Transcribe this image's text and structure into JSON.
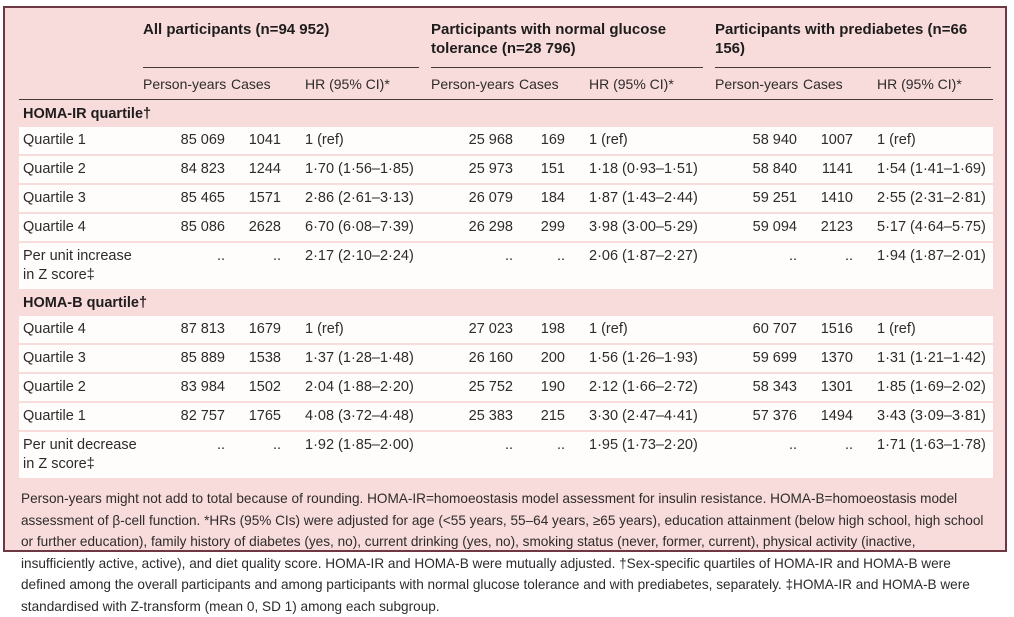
{
  "table": {
    "groups": [
      {
        "title": "All participants (n=94 952)"
      },
      {
        "title": "Participants with normal glucose tolerance (n=28 796)"
      },
      {
        "title": "Participants with prediabetes (n=66 156)"
      }
    ],
    "subheaders": [
      "Person-years",
      "Cases",
      "HR (95% CI)*"
    ],
    "sections": [
      {
        "header": "HOMA-IR quartile†",
        "rows": [
          {
            "label": "Quartile 1",
            "label2": "",
            "cells": [
              "85 069",
              "1041",
              "1 (ref)",
              "25 968",
              "169",
              "1 (ref)",
              "58 940",
              "1007",
              "1 (ref)"
            ]
          },
          {
            "label": "Quartile 2",
            "label2": "",
            "cells": [
              "84 823",
              "1244",
              "1·70 (1·56–1·85)",
              "25 973",
              "151",
              "1·18 (0·93–1·51)",
              "58 840",
              "1141",
              "1·54 (1·41–1·69)"
            ]
          },
          {
            "label": "Quartile 3",
            "label2": "",
            "cells": [
              "85 465",
              "1571",
              "2·86 (2·61–3·13)",
              "26 079",
              "184",
              "1·87 (1·43–2·44)",
              "59 251",
              "1410",
              "2·55 (2·31–2·81)"
            ]
          },
          {
            "label": "Quartile 4",
            "label2": "",
            "cells": [
              "85 086",
              "2628",
              "6·70 (6·08–7·39)",
              "26 298",
              "299",
              "3·98 (3·00–5·29)",
              "59 094",
              "2123",
              "5·17 (4·64–5·75)"
            ]
          },
          {
            "label": "Per unit increase",
            "label2": "in Z score‡",
            "cells": [
              "..",
              "..",
              "2·17 (2·10–2·24)",
              "..",
              "..",
              "2·06 (1·87–2·27)",
              "..",
              "..",
              "1·94 (1·87–2·01)"
            ]
          }
        ]
      },
      {
        "header": "HOMA-B quartile†",
        "rows": [
          {
            "label": "Quartile 4",
            "label2": "",
            "cells": [
              "87 813",
              "1679",
              "1 (ref)",
              "27 023",
              "198",
              "1 (ref)",
              "60 707",
              "1516",
              "1 (ref)"
            ]
          },
          {
            "label": "Quartile 3",
            "label2": "",
            "cells": [
              "85 889",
              "1538",
              "1·37 (1·28–1·48)",
              "26 160",
              "200",
              "1·56 (1·26–1·93)",
              "59 699",
              "1370",
              "1·31 (1·21–1·42)"
            ]
          },
          {
            "label": "Quartile 2",
            "label2": "",
            "cells": [
              "83 984",
              "1502",
              "2·04 (1·88–2·20)",
              "25 752",
              "190",
              "2·12 (1·66–2·72)",
              "58 343",
              "1301",
              "1·85 (1·69–2·02)"
            ]
          },
          {
            "label": "Quartile 1",
            "label2": "",
            "cells": [
              "82 757",
              "1765",
              "4·08 (3·72–4·48)",
              "25 383",
              "215",
              "3·30 (2·47–4·41)",
              "57 376",
              "1494",
              "3·43 (3·09–3·81)"
            ]
          },
          {
            "label": "Per unit decrease",
            "label2": "in Z score‡",
            "cells": [
              "..",
              "..",
              "1·92 (1·85–2·00)",
              "..",
              "..",
              "1·95 (1·73–2·20)",
              "..",
              "..",
              "1·71 (1·63–1·78)"
            ]
          }
        ]
      }
    ],
    "footnote": "Person-years might not add to total because of rounding. HOMA-IR=homoeostasis model assessment for insulin resistance. HOMA-B=homoeostasis model assessment of β-cell function. *HRs (95% CIs) were adjusted for age (<55 years, 55–64 years, ≥65 years), education attainment (below high school, high school or further education), family history of diabetes (yes, no), current drinking (yes, no), smoking status (never, former, current), physical activity (inactive, insufficiently active, active), and diet quality score. HOMA-IR and HOMA-B were mutually adjusted. †Sex-specific quartiles of HOMA-IR and HOMA-B were defined among the overall participants and among participants with normal glucose tolerance and with prediabetes, separately. ‡HOMA-IR and HOMA-B were standardised with Z-transform (mean 0, SD 1) among each subgroup.",
    "colors": {
      "background_pink": "#f8dcdc",
      "outer_border": "#6d3743",
      "rule": "#403a3a",
      "row_white": "#fefdfc",
      "text": "#2e2b2a"
    }
  }
}
